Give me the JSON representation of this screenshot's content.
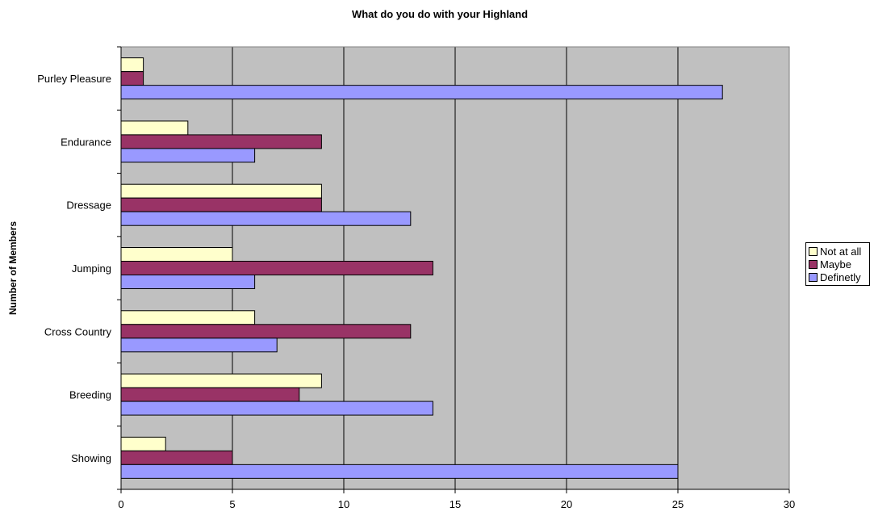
{
  "chart_data": {
    "type": "bar",
    "orientation": "horizontal",
    "title": "What do you do with your Highland",
    "xlabel": "",
    "ylabel": "Number of Members",
    "categories": [
      "Showing",
      "Breeding",
      "Cross Country",
      "Jumping",
      "Dressage",
      "Endurance",
      "Purley Pleasure"
    ],
    "series": [
      {
        "name": "Not at all",
        "color": "#FFFFCC",
        "values": [
          2,
          9,
          6,
          5,
          9,
          3,
          1
        ]
      },
      {
        "name": "Maybe",
        "color": "#993366",
        "values": [
          5,
          8,
          13,
          14,
          9,
          9,
          1
        ]
      },
      {
        "name": "Definetly",
        "color": "#9999FF",
        "values": [
          25,
          14,
          7,
          6,
          13,
          6,
          27
        ]
      }
    ],
    "xlim": [
      0,
      30
    ],
    "xticks": [
      "0",
      "5",
      "10",
      "15",
      "20",
      "25",
      "30"
    ],
    "grid": "vertical",
    "plot_background": "#C0C0C0",
    "legend_position": "right"
  }
}
